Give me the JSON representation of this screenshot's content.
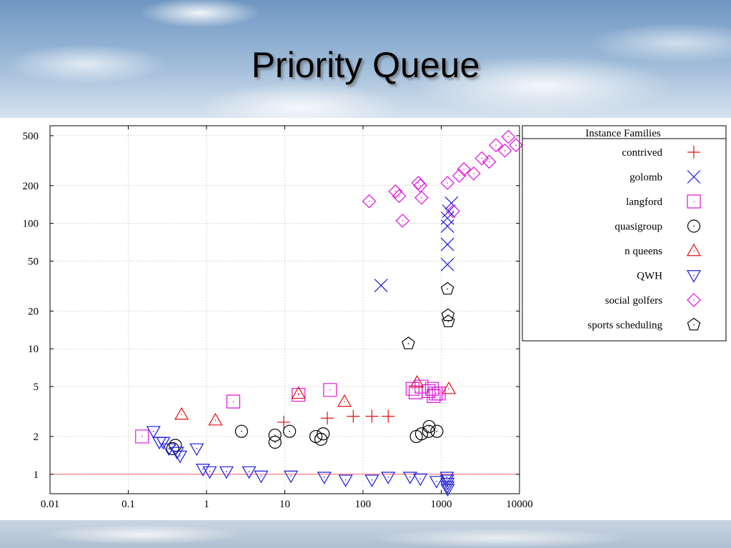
{
  "slide": {
    "title": "Priority Queue"
  },
  "chart_data": {
    "type": "scatter",
    "x_scale": "log",
    "y_scale": "log",
    "xlim": [
      0.01,
      10000
    ],
    "ylim": [
      0.7,
      600
    ],
    "grid": true,
    "x_ticks": [
      0.01,
      0.1,
      1,
      10,
      100,
      1000,
      10000
    ],
    "x_tick_labels": [
      "0.01",
      "0.1",
      "1",
      "10",
      "100",
      "1000",
      "10000"
    ],
    "y_ticks": [
      1,
      2,
      5,
      10,
      20,
      50,
      100,
      200,
      500
    ],
    "y_tick_labels": [
      "1",
      "2",
      "5",
      "10",
      "20",
      "50",
      "100",
      "200",
      "500"
    ],
    "reference_line": {
      "y": 1,
      "color": "#ff6060"
    },
    "legend": {
      "title": "Instance Families",
      "placement": "right"
    },
    "series": [
      {
        "name": "contrived",
        "marker": "plus",
        "color": "#e01010",
        "points": [
          [
            9.7,
            2.6
          ],
          [
            35,
            2.8
          ],
          [
            75,
            2.9
          ],
          [
            130,
            2.9
          ],
          [
            210,
            2.9
          ]
        ]
      },
      {
        "name": "golomb",
        "marker": "x",
        "color": "#1a1ae0",
        "points": [
          [
            170,
            32
          ],
          [
            1200,
            47
          ],
          [
            1200,
            68
          ],
          [
            1200,
            95
          ],
          [
            1200,
            110
          ],
          [
            1250,
            125
          ],
          [
            1350,
            145
          ]
        ]
      },
      {
        "name": "langford",
        "marker": "square",
        "color": "#e010e0",
        "points": [
          [
            0.15,
            2.0
          ],
          [
            2.2,
            3.8
          ],
          [
            15,
            4.3
          ],
          [
            38,
            4.7
          ],
          [
            430,
            4.8
          ],
          [
            470,
            4.5
          ],
          [
            560,
            5.0
          ],
          [
            690,
            4.6
          ],
          [
            760,
            4.8
          ],
          [
            800,
            4.2
          ],
          [
            850,
            4.4
          ],
          [
            930,
            4.4
          ]
        ]
      },
      {
        "name": "quasigroup",
        "marker": "circle",
        "color": "#000000",
        "points": [
          [
            0.37,
            1.6
          ],
          [
            0.4,
            1.7
          ],
          [
            2.8,
            2.2
          ],
          [
            7.5,
            1.8
          ],
          [
            7.5,
            2.05
          ],
          [
            11.5,
            2.2
          ],
          [
            25,
            2.0
          ],
          [
            29,
            1.9
          ],
          [
            31,
            2.1
          ],
          [
            480,
            2.0
          ],
          [
            560,
            2.1
          ],
          [
            690,
            2.2
          ],
          [
            700,
            2.4
          ],
          [
            880,
            2.2
          ]
        ]
      },
      {
        "name": "n queens",
        "marker": "triangle-up",
        "color": "#e01010",
        "points": [
          [
            0.48,
            3.0
          ],
          [
            1.3,
            2.7
          ],
          [
            15,
            4.4
          ],
          [
            58,
            3.8
          ],
          [
            490,
            5.4
          ],
          [
            1250,
            4.8
          ]
        ]
      },
      {
        "name": "QWH",
        "marker": "triangle-down",
        "color": "#1a1ae0",
        "points": [
          [
            0.21,
            2.2
          ],
          [
            0.25,
            1.8
          ],
          [
            0.28,
            1.8
          ],
          [
            0.33,
            1.6
          ],
          [
            0.42,
            1.5
          ],
          [
            0.46,
            1.4
          ],
          [
            0.75,
            1.6
          ],
          [
            0.9,
            1.1
          ],
          [
            1.1,
            1.05
          ],
          [
            1.8,
            1.05
          ],
          [
            3.5,
            1.05
          ],
          [
            5,
            0.97
          ],
          [
            12,
            0.97
          ],
          [
            32,
            0.95
          ],
          [
            60,
            0.9
          ],
          [
            130,
            0.9
          ],
          [
            210,
            0.95
          ],
          [
            400,
            0.95
          ],
          [
            540,
            0.92
          ],
          [
            870,
            0.88
          ],
          [
            1180,
            0.95
          ],
          [
            1190,
            0.9
          ],
          [
            1200,
            0.85
          ],
          [
            1200,
            0.8
          ],
          [
            1210,
            0.76
          ]
        ]
      },
      {
        "name": "social golfers",
        "marker": "diamond",
        "color": "#e010e0",
        "points": [
          [
            120,
            150
          ],
          [
            260,
            180
          ],
          [
            290,
            165
          ],
          [
            320,
            105
          ],
          [
            510,
            210
          ],
          [
            540,
            200
          ],
          [
            560,
            160
          ],
          [
            1200,
            210
          ],
          [
            1420,
            125
          ],
          [
            1700,
            240
          ],
          [
            1950,
            270
          ],
          [
            2600,
            250
          ],
          [
            3300,
            330
          ],
          [
            4100,
            310
          ],
          [
            5000,
            420
          ],
          [
            6500,
            380
          ],
          [
            7200,
            490
          ],
          [
            9000,
            420
          ]
        ]
      },
      {
        "name": "sports scheduling",
        "marker": "pentagon",
        "color": "#000000",
        "points": [
          [
            380,
            11
          ],
          [
            1200,
            30
          ],
          [
            1220,
            18.5
          ],
          [
            1230,
            16.5
          ]
        ]
      }
    ]
  }
}
